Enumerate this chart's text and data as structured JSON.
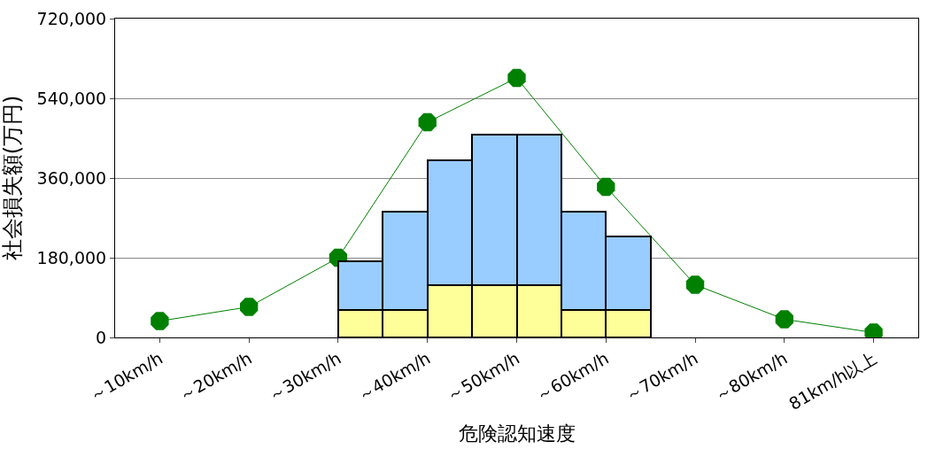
{
  "chart_data": [
    {
      "type": "line",
      "xlabel": "危険認知速度",
      "ylabel": "社会損失額(万円)",
      "categories": [
        "～10km/h",
        "～20km/h",
        "～30km/h",
        "～40km/h",
        "～50km/h",
        "～60km/h",
        "～70km/h",
        "～80km/h",
        "81km/h以上"
      ],
      "series": [
        {
          "color": "#008000",
          "values": [
            37000,
            69000,
            180000,
            486000,
            586000,
            340000,
            119000,
            41000,
            11000
          ]
        }
      ],
      "marker": "circle",
      "line_style": "solid",
      "ylim": [
        0,
        720000
      ],
      "yticks": [
        {
          "value": 0,
          "label": "0"
        },
        {
          "value": 180000,
          "label": "180,000"
        },
        {
          "value": 360000,
          "label": "360,000"
        },
        {
          "value": 540000,
          "label": "540,000"
        },
        {
          "value": 720000,
          "label": "720,000"
        }
      ],
      "grid": "y"
    },
    {
      "type": "bar",
      "categories": [
        null,
        null,
        null,
        null,
        null,
        null,
        null
      ],
      "series": [
        {
          "color": "#ffff99",
          "values": [
            63000,
            63000,
            119000,
            119000,
            119000,
            63000,
            63000
          ]
        },
        {
          "color": "#99ccff",
          "values": [
            110000,
            222000,
            281000,
            339000,
            339000,
            222000,
            166000
          ]
        }
      ],
      "stacked": true,
      "ylim": [
        0,
        720000
      ]
    }
  ]
}
